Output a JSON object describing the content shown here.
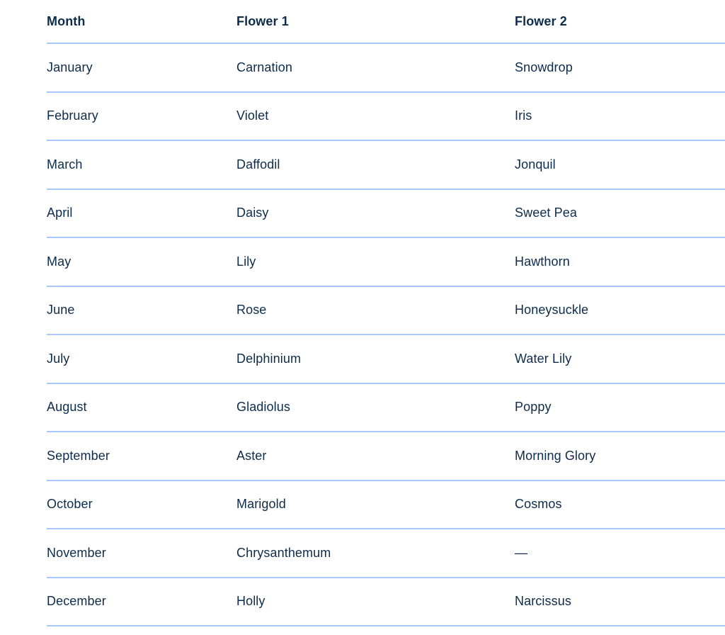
{
  "table": {
    "columns": [
      "Month",
      "Flower 1",
      "Flower 2"
    ],
    "rows": [
      {
        "month": "January",
        "flower1": "Carnation",
        "flower2": "Snowdrop"
      },
      {
        "month": "February",
        "flower1": "Violet",
        "flower2": "Iris"
      },
      {
        "month": "March",
        "flower1": "Daffodil",
        "flower2": "Jonquil"
      },
      {
        "month": "April",
        "flower1": "Daisy",
        "flower2": "Sweet Pea"
      },
      {
        "month": "May",
        "flower1": "Lily",
        "flower2": "Hawthorn"
      },
      {
        "month": "June",
        "flower1": "Rose",
        "flower2": "Honeysuckle"
      },
      {
        "month": "July",
        "flower1": "Delphinium",
        "flower2": "Water Lily"
      },
      {
        "month": "August",
        "flower1": "Gladiolus",
        "flower2": "Poppy"
      },
      {
        "month": "September",
        "flower1": "Aster",
        "flower2": "Morning Glory"
      },
      {
        "month": "October",
        "flower1": "Marigold",
        "flower2": "Cosmos"
      },
      {
        "month": "November",
        "flower1": "Chrysanthemum",
        "flower2": "—"
      },
      {
        "month": "December",
        "flower1": "Holly",
        "flower2": "Narcissus"
      }
    ]
  },
  "chart_data": {
    "type": "table",
    "title": "",
    "columns": [
      "Month",
      "Flower 1",
      "Flower 2"
    ],
    "rows": [
      [
        "January",
        "Carnation",
        "Snowdrop"
      ],
      [
        "February",
        "Violet",
        "Iris"
      ],
      [
        "March",
        "Daffodil",
        "Jonquil"
      ],
      [
        "April",
        "Daisy",
        "Sweet Pea"
      ],
      [
        "May",
        "Lily",
        "Hawthorn"
      ],
      [
        "June",
        "Rose",
        "Honeysuckle"
      ],
      [
        "July",
        "Delphinium",
        "Water Lily"
      ],
      [
        "August",
        "Gladiolus",
        "Poppy"
      ],
      [
        "September",
        "Aster",
        "Morning Glory"
      ],
      [
        "October",
        "Marigold",
        "Cosmos"
      ],
      [
        "November",
        "Chrysanthemum",
        "—"
      ],
      [
        "December",
        "Holly",
        "Narcissus"
      ]
    ]
  },
  "colors": {
    "text": "#0d2c4b",
    "divider": "#a8c7fa",
    "background": "#ffffff"
  }
}
